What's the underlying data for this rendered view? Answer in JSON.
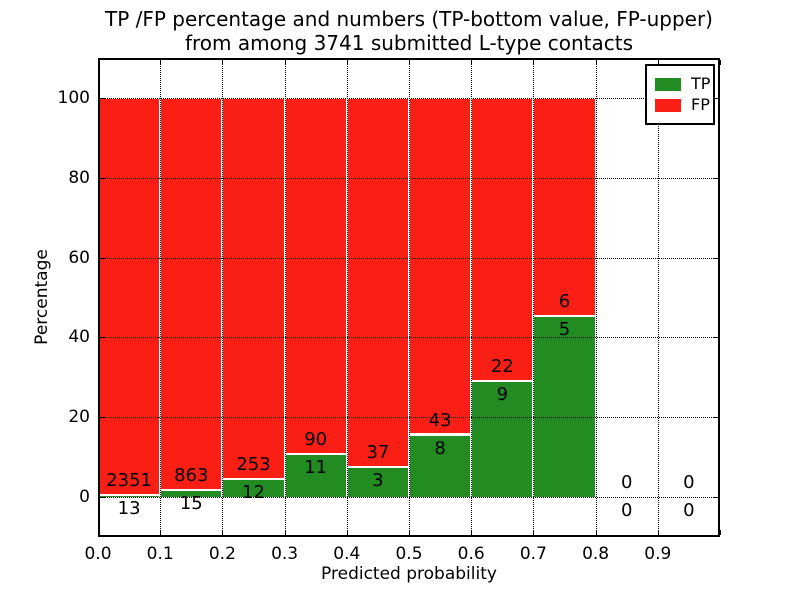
{
  "title": {
    "line1": "TP /FP percentage and numbers (TP-bottom value, FP-upper)",
    "line2": "from among 3741 submitted L-type contacts"
  },
  "axes": {
    "xlabel": "Predicted probability",
    "ylabel": "Percentage",
    "xtick_labels": [
      "0.0",
      "0.1",
      "0.2",
      "0.3",
      "0.4",
      "0.5",
      "0.6",
      "0.7",
      "0.8",
      "0.9"
    ],
    "ytick_values": [
      0,
      20,
      40,
      60,
      80,
      100
    ],
    "xlim": [
      0.0,
      1.0
    ],
    "ylim": [
      -10,
      110
    ],
    "grid_style": "dotted"
  },
  "legend": {
    "position": "upper-right",
    "entries": [
      {
        "label": "TP",
        "color": "#228b22"
      },
      {
        "label": "FP",
        "color": "#fa1f15"
      }
    ]
  },
  "chart_data": {
    "type": "bar",
    "stacked": true,
    "normalized_to_percent": true,
    "title": "TP /FP percentage and numbers (TP-bottom value, FP-upper) from among 3741 submitted L-type contacts",
    "xlabel": "Predicted probability",
    "ylabel": "Percentage",
    "total_contacts": 3741,
    "bin_width": 0.1,
    "bin_starts": [
      0.0,
      0.1,
      0.2,
      0.3,
      0.4,
      0.5,
      0.6,
      0.7,
      0.8,
      0.9
    ],
    "series": [
      {
        "name": "TP",
        "color": "#228b22",
        "counts": [
          13,
          15,
          12,
          11,
          3,
          8,
          9,
          5,
          0,
          0
        ]
      },
      {
        "name": "FP",
        "color": "#fa1f15",
        "counts": [
          2351,
          863,
          253,
          90,
          37,
          43,
          22,
          6,
          0,
          0
        ]
      }
    ],
    "tp_percent_of_bin": [
      0.55,
      1.71,
      4.53,
      10.89,
      7.5,
      15.69,
      29.03,
      45.45,
      null,
      null
    ],
    "ylim": [
      -10,
      110
    ],
    "legend_position": "upper-right",
    "grid": true
  }
}
